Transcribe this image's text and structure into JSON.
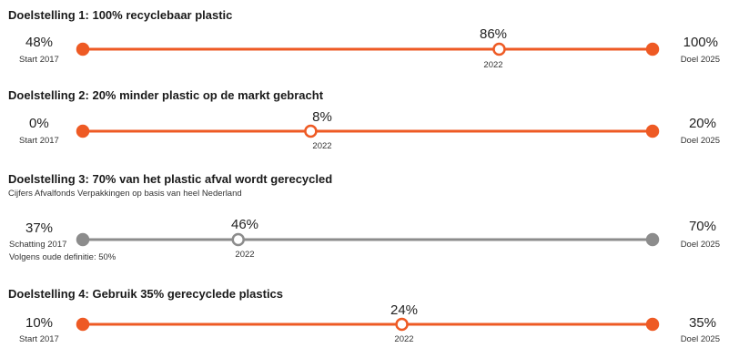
{
  "colors": {
    "orange": "#ee5a24",
    "grey": "#8c8c8c"
  },
  "chart_data": [
    {
      "type": "line",
      "title": "Doelstelling 1: 100% recyclebaar plastic",
      "color": "orange",
      "start": {
        "value": 48,
        "label": "48%",
        "caption": "Start 2017"
      },
      "current": {
        "value": 86,
        "label": "86%",
        "caption": "2022"
      },
      "target": {
        "value": 100,
        "label": "100%",
        "caption": "Doel 2025"
      }
    },
    {
      "type": "line",
      "title": "Doelstelling 2: 20% minder plastic op de markt gebracht",
      "color": "orange",
      "start": {
        "value": 0,
        "label": "0%",
        "caption": "Start 2017"
      },
      "current": {
        "value": 8,
        "label": "8%",
        "caption": "2022"
      },
      "target": {
        "value": 20,
        "label": "20%",
        "caption": "Doel 2025"
      }
    },
    {
      "type": "line",
      "title": "Doelstelling 3: 70% van het plastic afval wordt gerecycled",
      "subtitle": "Cijfers Afvalfonds Verpakkingen op basis van heel Nederland",
      "color": "grey",
      "start": {
        "value": 37,
        "label": "37%",
        "caption": "Schatting 2017",
        "note": "Volgens oude definitie: 50%"
      },
      "current": {
        "value": 46,
        "label": "46%",
        "caption": "2022"
      },
      "target": {
        "value": 70,
        "label": "70%",
        "caption": "Doel 2025"
      }
    },
    {
      "type": "line",
      "title": "Doelstelling 4: Gebruik 35% gerecyclede plastics",
      "color": "orange",
      "start": {
        "value": 10,
        "label": "10%",
        "caption": "Start 2017"
      },
      "current": {
        "value": 24,
        "label": "24%",
        "caption": "2022"
      },
      "target": {
        "value": 35,
        "label": "35%",
        "caption": "Doel 2025"
      }
    }
  ]
}
